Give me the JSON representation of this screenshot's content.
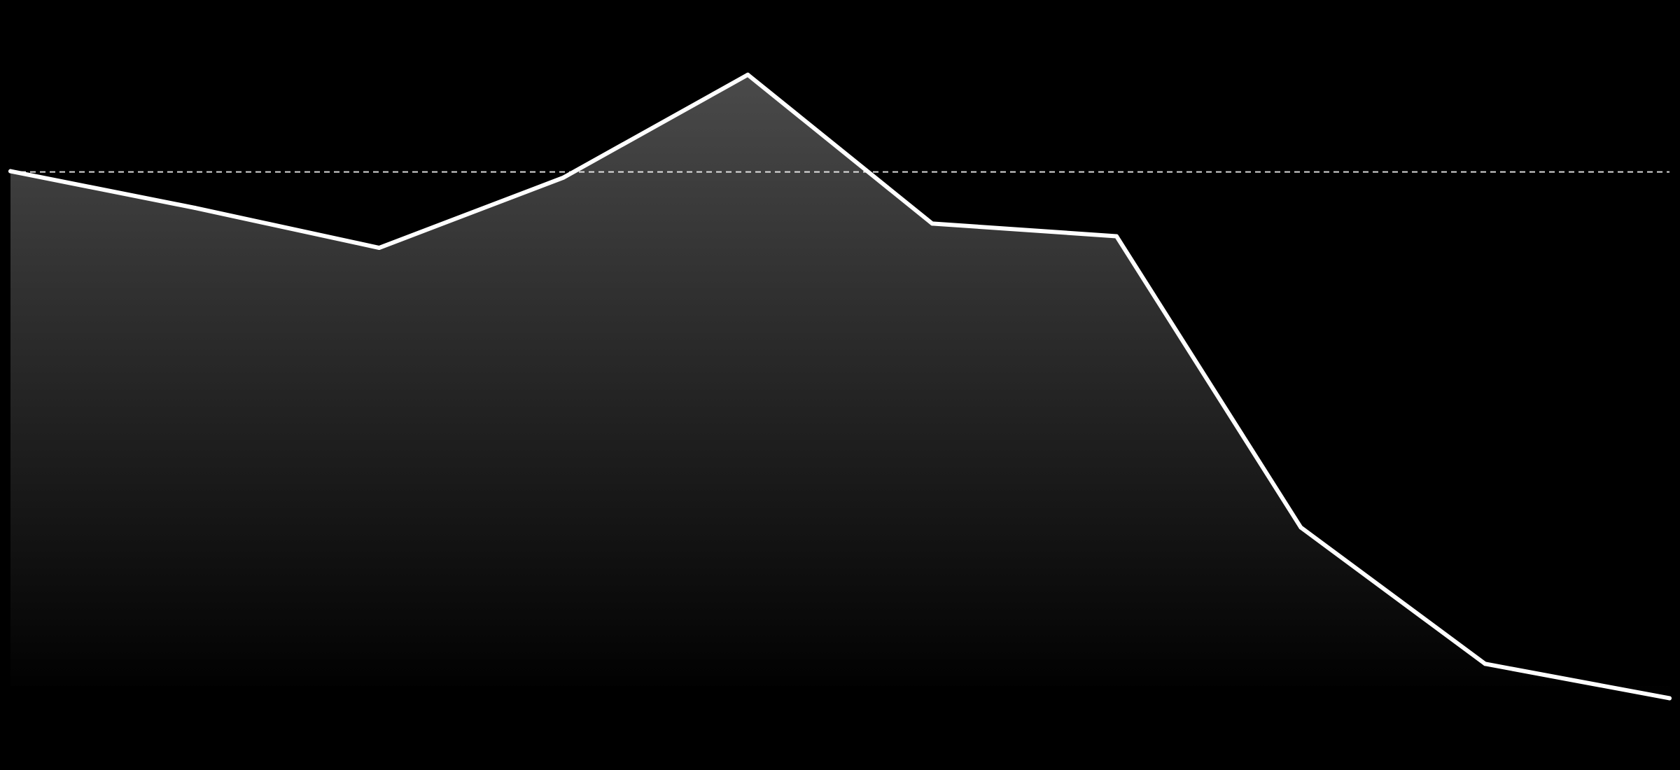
{
  "chart_data": {
    "type": "area",
    "x": [
      0,
      1,
      2,
      3,
      4,
      5,
      6,
      7,
      8,
      9
    ],
    "series": [
      {
        "values": [
          100.2,
          90.4,
          79.7,
          98.5,
          126.0,
          86.2,
          82.8,
          4.9,
          -31.6,
          -40.8
        ]
      }
    ],
    "reference_line": {
      "y": 100,
      "style": "dashed"
    },
    "ylim": [
      -60,
      146
    ],
    "xlim": [
      0,
      9
    ],
    "grid": false,
    "legend": "none",
    "colors": {
      "background": "#000000",
      "line": "#ffffff",
      "fill_top": "#4a4a4a",
      "fill_bottom": "#000000",
      "reference_line": "#ffffff"
    }
  }
}
